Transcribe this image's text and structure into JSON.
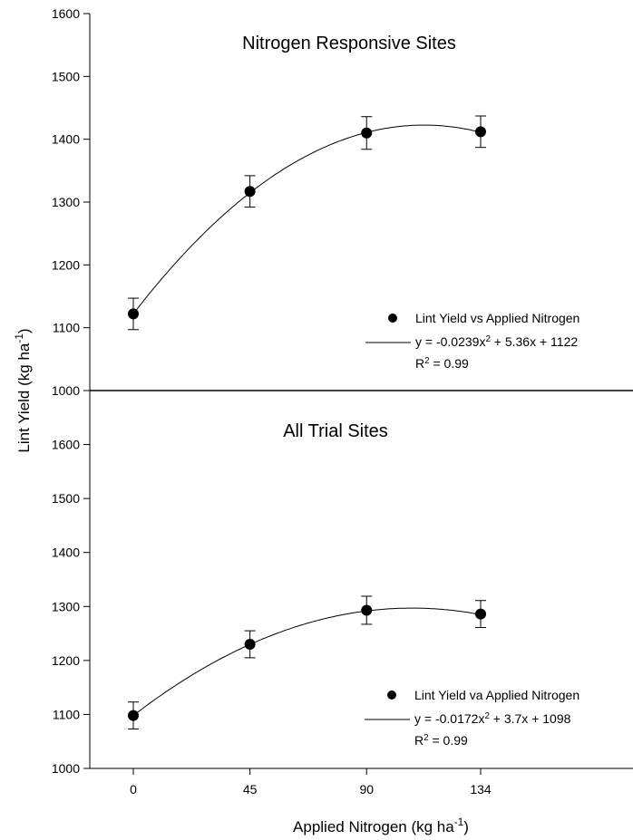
{
  "chart_data": [
    {
      "type": "scatter",
      "title": "Nitrogen Responsive Sites",
      "ylabel": "Lint Yield (kg ha⁻¹)",
      "yticks": [
        1000,
        1100,
        1200,
        1300,
        1400,
        1500,
        1600
      ],
      "ylim": [
        1000,
        1600
      ],
      "x": [
        0,
        45,
        90,
        134
      ],
      "y": [
        1122,
        1317,
        1410,
        1412
      ],
      "error": [
        25,
        25,
        26,
        25
      ],
      "fit": {
        "a": -0.0239,
        "b": 5.36,
        "c": 1122
      },
      "legend": {
        "marker_label": "Lint Yield vs Applied Nitrogen",
        "equation": "y = -0.0239x² + 5.36x + 1122",
        "r2": "R² = 0.99"
      }
    },
    {
      "type": "scatter",
      "title": "All Trial Sites",
      "ylabel": "Lint Yield (kg ha⁻¹)",
      "yticks": [
        1000,
        1100,
        1200,
        1300,
        1400,
        1500,
        1600
      ],
      "ylim": [
        1000,
        1700
      ],
      "x": [
        0,
        45,
        90,
        134
      ],
      "y": [
        1098,
        1230,
        1293,
        1286
      ],
      "error": [
        25,
        25,
        26,
        25
      ],
      "fit": {
        "a": -0.0172,
        "b": 3.7,
        "c": 1098
      },
      "legend": {
        "marker_label": "Lint Yield va Applied Nitrogen",
        "equation": "y = -0.0172x² + 3.7x + 1098",
        "r2": "R² = 0.99"
      }
    }
  ],
  "axes": {
    "ylabel": "Lint Yield (kg ha⁻¹)",
    "xlabel": "Applied Nitrogen (kg ha⁻¹)",
    "xticks": [
      0,
      45,
      90,
      134
    ]
  }
}
